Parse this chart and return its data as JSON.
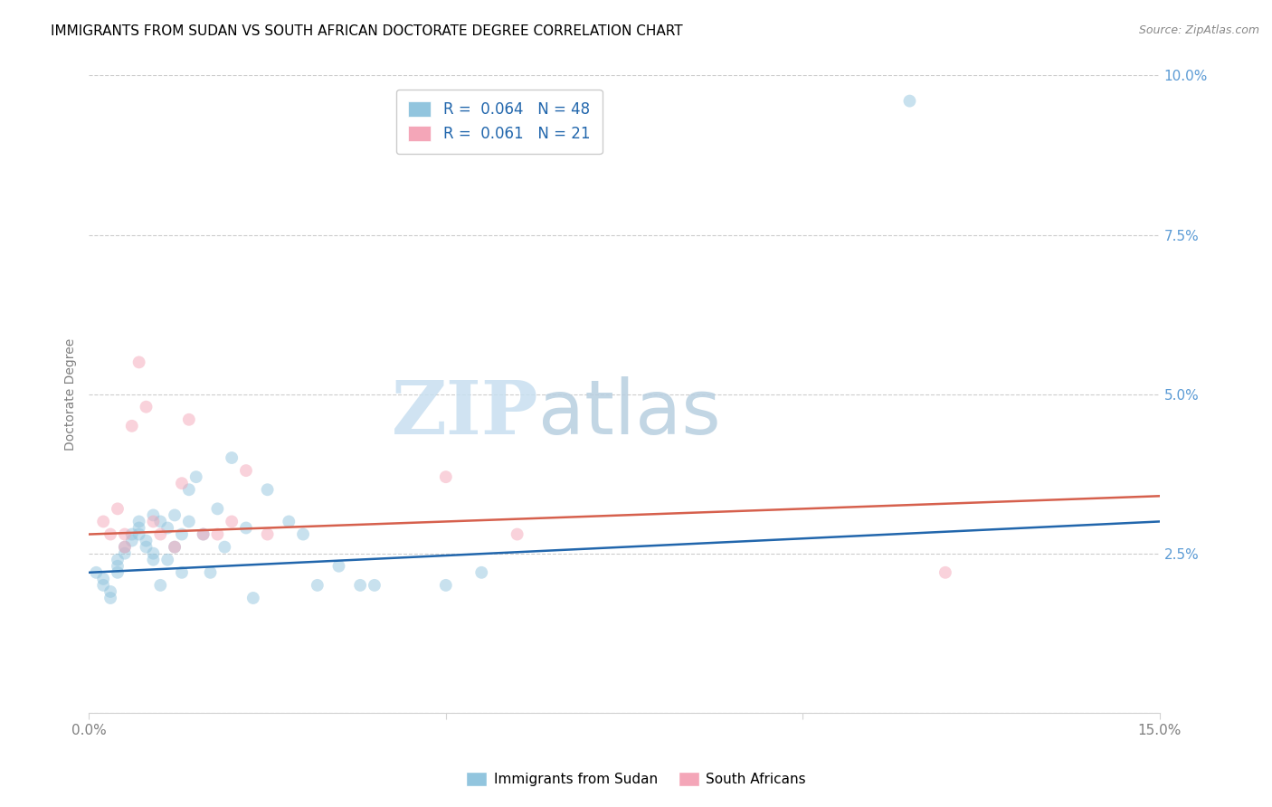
{
  "title": "IMMIGRANTS FROM SUDAN VS SOUTH AFRICAN DOCTORATE DEGREE CORRELATION CHART",
  "source": "Source: ZipAtlas.com",
  "ylabel": "Doctorate Degree",
  "watermark_zip": "ZIP",
  "watermark_atlas": "atlas",
  "xlim": [
    0.0,
    0.15
  ],
  "ylim": [
    0.0,
    0.1
  ],
  "xticks": [
    0.0,
    0.05,
    0.1,
    0.15
  ],
  "xticklabels": [
    "0.0%",
    "",
    "",
    "15.0%"
  ],
  "yticks_right": [
    0.0,
    0.025,
    0.05,
    0.075,
    0.1
  ],
  "yticklabels_right": [
    "",
    "2.5%",
    "5.0%",
    "7.5%",
    "10.0%"
  ],
  "blue_color": "#92c5de",
  "pink_color": "#f4a6b8",
  "line_blue": "#2166ac",
  "line_pink": "#d6604d",
  "blue_scatter_x": [
    0.001,
    0.002,
    0.002,
    0.003,
    0.003,
    0.004,
    0.004,
    0.004,
    0.005,
    0.005,
    0.006,
    0.006,
    0.007,
    0.007,
    0.007,
    0.008,
    0.008,
    0.009,
    0.009,
    0.009,
    0.01,
    0.01,
    0.011,
    0.011,
    0.012,
    0.012,
    0.013,
    0.013,
    0.014,
    0.014,
    0.015,
    0.016,
    0.017,
    0.018,
    0.019,
    0.02,
    0.022,
    0.025,
    0.028,
    0.03,
    0.032,
    0.035,
    0.038,
    0.04,
    0.05,
    0.055,
    0.115,
    0.023
  ],
  "blue_scatter_y": [
    0.022,
    0.021,
    0.02,
    0.019,
    0.018,
    0.024,
    0.023,
    0.022,
    0.026,
    0.025,
    0.028,
    0.027,
    0.03,
    0.029,
    0.028,
    0.027,
    0.026,
    0.031,
    0.025,
    0.024,
    0.03,
    0.02,
    0.029,
    0.024,
    0.031,
    0.026,
    0.028,
    0.022,
    0.035,
    0.03,
    0.037,
    0.028,
    0.022,
    0.032,
    0.026,
    0.04,
    0.029,
    0.035,
    0.03,
    0.028,
    0.02,
    0.023,
    0.02,
    0.02,
    0.02,
    0.022,
    0.096,
    0.018
  ],
  "pink_scatter_x": [
    0.002,
    0.003,
    0.004,
    0.005,
    0.005,
    0.006,
    0.007,
    0.008,
    0.009,
    0.01,
    0.012,
    0.013,
    0.014,
    0.016,
    0.018,
    0.02,
    0.022,
    0.025,
    0.05,
    0.06,
    0.12
  ],
  "pink_scatter_y": [
    0.03,
    0.028,
    0.032,
    0.028,
    0.026,
    0.045,
    0.055,
    0.048,
    0.03,
    0.028,
    0.026,
    0.036,
    0.046,
    0.028,
    0.028,
    0.03,
    0.038,
    0.028,
    0.037,
    0.028,
    0.022
  ],
  "blue_trend_x": [
    0.0,
    0.15
  ],
  "blue_trend_y_start": 0.022,
  "blue_trend_y_end": 0.03,
  "pink_trend_y_start": 0.028,
  "pink_trend_y_end": 0.034,
  "title_fontsize": 11,
  "axis_label_fontsize": 10,
  "tick_fontsize": 11,
  "scatter_size": 100,
  "scatter_alpha": 0.5,
  "background_color": "#ffffff",
  "grid_color": "#cccccc"
}
